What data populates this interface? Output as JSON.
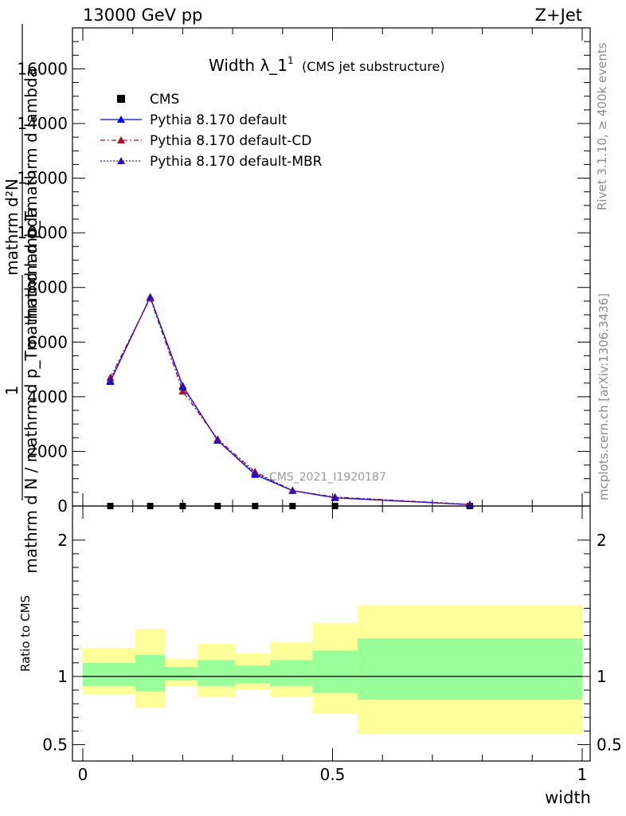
{
  "header": {
    "energy_label": "13000 GeV pp",
    "process_label": "Z+Jet"
  },
  "side_text": {
    "rivet": "Rivet 3.1.10, ≥ 400k events",
    "site": "mcplots.cern.ch [arXiv:1306.3436]"
  },
  "chart_data": [
    {
      "type": "line",
      "title": "Width λ_1",
      "title_sup": "1",
      "subtitle": "(CMS jet substructure)",
      "watermark": "CMS_2021_I1920187",
      "ylabel_numerator": "mathrm d²N",
      "ylabel_numerator_2": "mathrm d p_Tmathrm d lambda",
      "ylabel_fraction_1": "1",
      "ylabel_denominator": "mathrm d N / mathrm d p_Tmathrm d lambda",
      "xlim": [
        0,
        1
      ],
      "ylim": [
        0,
        17500
      ],
      "yticks": [
        0,
        2000,
        4000,
        6000,
        8000,
        10000,
        12000,
        14000,
        16000
      ],
      "ytick_labels": [
        "0",
        "2000",
        "4000",
        "6000",
        "8000",
        "10000",
        "12000",
        "14000",
        "16000"
      ],
      "legend_position": "top-left",
      "series": [
        {
          "name": "CMS",
          "color": "#000000",
          "marker": "square",
          "x": [
            0.055,
            0.135,
            0.2,
            0.27,
            0.345,
            0.42,
            0.505,
            0.775
          ],
          "y": [
            0,
            0,
            0,
            0,
            0,
            0,
            0,
            0
          ]
        },
        {
          "name": "Pythia 8.170 default",
          "color": "#0000ff",
          "marker": "triangle",
          "dash": "",
          "x": [
            0.055,
            0.135,
            0.2,
            0.27,
            0.345,
            0.42,
            0.505,
            0.775
          ],
          "y": [
            4550,
            7650,
            4400,
            2400,
            1150,
            560,
            300,
            50
          ]
        },
        {
          "name": "Pythia 8.170 default-CD",
          "color": "#b01030",
          "marker": "triangle",
          "dash": "6,3,2,3",
          "x": [
            0.055,
            0.135,
            0.2,
            0.27,
            0.345,
            0.42,
            0.505,
            0.775
          ],
          "y": [
            4700,
            7600,
            4200,
            2450,
            1250,
            560,
            330,
            60
          ]
        },
        {
          "name": "Pythia 8.170 default-MBR",
          "color": "#3010b0",
          "marker": "triangle",
          "dash": "2,2",
          "x": [
            0.055,
            0.135,
            0.2,
            0.27,
            0.345,
            0.42,
            0.505,
            0.775
          ],
          "y": [
            4600,
            7650,
            4350,
            2400,
            1200,
            570,
            310,
            50
          ]
        }
      ]
    },
    {
      "type": "area",
      "ylabel": "Ratio to CMS",
      "xlabel": "width",
      "xlim": [
        0,
        1
      ],
      "ylim": [
        0.38,
        2.25
      ],
      "xticks": [
        0,
        0.5,
        1
      ],
      "xtick_labels": [
        "0",
        "0.5",
        "1"
      ],
      "yticks": [
        0.5,
        1,
        2
      ],
      "ytick_labels": [
        "0.5",
        "1",
        "2"
      ],
      "ratio_line": 1,
      "bands": {
        "colors": {
          "outer": "#ffff99",
          "inner": "#99ff99"
        },
        "bins": [
          {
            "x0": 0.0,
            "x1": 0.105,
            "outer": [
              0.87,
              1.21
            ],
            "inner": [
              0.93,
              1.1
            ]
          },
          {
            "x0": 0.105,
            "x1": 0.165,
            "outer": [
              0.77,
              1.35
            ],
            "inner": [
              0.89,
              1.16
            ]
          },
          {
            "x0": 0.165,
            "x1": 0.23,
            "outer": [
              0.93,
              1.13
            ],
            "inner": [
              0.97,
              1.07
            ]
          },
          {
            "x0": 0.23,
            "x1": 0.305,
            "outer": [
              0.85,
              1.24
            ],
            "inner": [
              0.93,
              1.12
            ]
          },
          {
            "x0": 0.305,
            "x1": 0.375,
            "outer": [
              0.9,
              1.17
            ],
            "inner": [
              0.95,
              1.08
            ]
          },
          {
            "x0": 0.375,
            "x1": 0.46,
            "outer": [
              0.85,
              1.25
            ],
            "inner": [
              0.93,
              1.12
            ]
          },
          {
            "x0": 0.46,
            "x1": 0.55,
            "outer": [
              0.73,
              1.39
            ],
            "inner": [
              0.88,
              1.19
            ]
          },
          {
            "x0": 0.55,
            "x1": 1.0,
            "outer": [
              0.58,
              1.52
            ],
            "inner": [
              0.83,
              1.28
            ]
          }
        ]
      }
    }
  ]
}
